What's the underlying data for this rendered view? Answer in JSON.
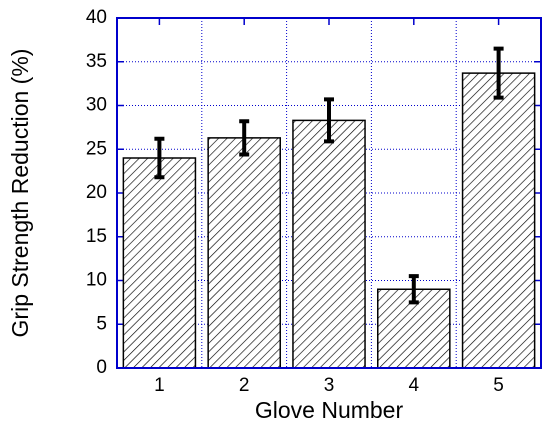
{
  "chart_data": {
    "type": "bar",
    "x_label": "Glove Number",
    "y_label": "Grip Strength Reduction (%)",
    "categories": [
      "1",
      "2",
      "3",
      "4",
      "5"
    ],
    "series": [
      {
        "color": "#000000",
        "values": [
          24.0,
          26.3,
          28.3,
          9.0,
          33.7
        ],
        "errors": [
          2.2,
          1.9,
          2.4,
          1.5,
          2.8
        ]
      }
    ],
    "ylim": [
      0,
      40
    ],
    "yticks": [
      0,
      5,
      10,
      15,
      20,
      25,
      30,
      35,
      40
    ],
    "grid": true,
    "grid_color": "#0000cc",
    "axis_color": "#0000cc"
  }
}
